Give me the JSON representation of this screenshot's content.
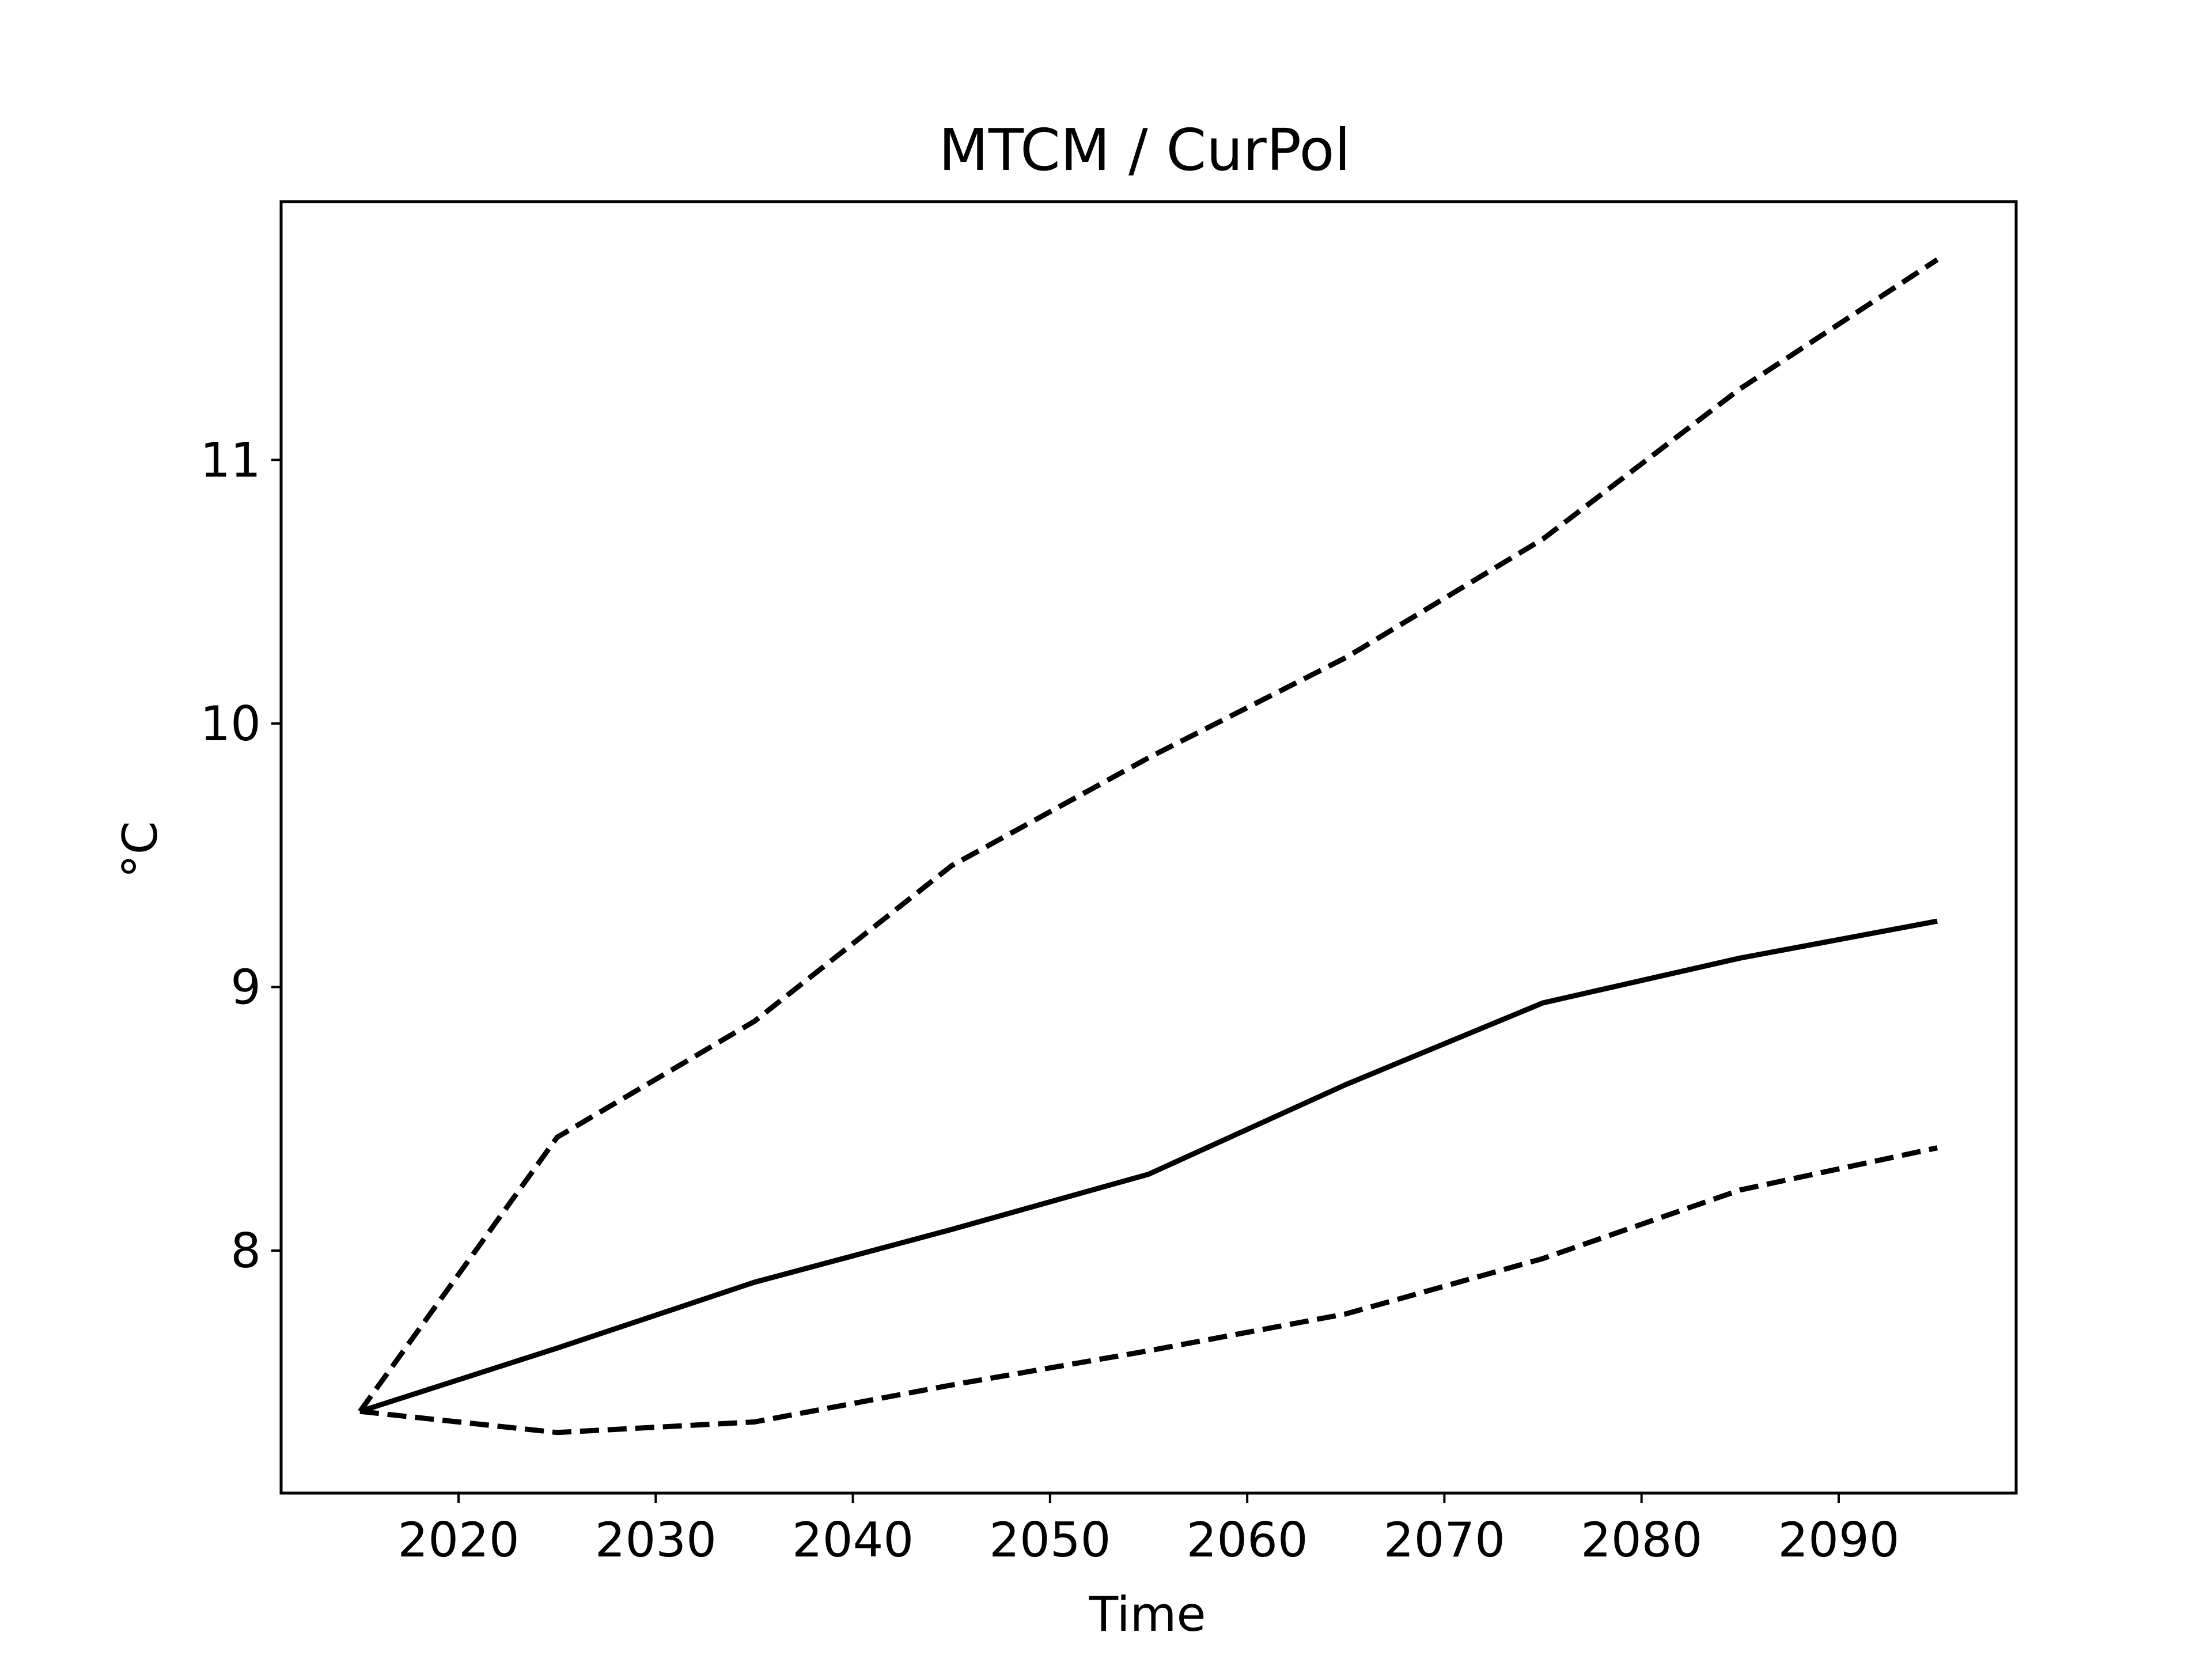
{
  "chart_data": {
    "type": "line",
    "title": "MTCM / CurPol",
    "xlabel": "Time",
    "ylabel": "°C",
    "xlim": [
      2011,
      2099
    ],
    "ylim": [
      7.08,
      11.98
    ],
    "xticks": [
      2020,
      2030,
      2040,
      2050,
      2060,
      2070,
      2080,
      2090
    ],
    "yticks": [
      8,
      9,
      10,
      11
    ],
    "grid": false,
    "legend": "none",
    "x": [
      2015,
      2025,
      2035,
      2045,
      2055,
      2065,
      2075,
      2085,
      2095
    ],
    "series": [
      {
        "values": [
          7.39,
          8.43,
          8.87,
          9.46,
          9.87,
          10.25,
          10.7,
          11.27,
          11.76
        ],
        "style": "dashed",
        "color": "#000000"
      },
      {
        "values": [
          7.39,
          7.63,
          7.88,
          8.08,
          8.29,
          8.63,
          8.94,
          9.11,
          9.25
        ],
        "style": "solid",
        "color": "#000000"
      },
      {
        "values": [
          7.39,
          7.31,
          7.35,
          7.49,
          7.62,
          7.76,
          7.97,
          8.23,
          8.39
        ],
        "style": "dashed",
        "color": "#000000"
      }
    ]
  }
}
